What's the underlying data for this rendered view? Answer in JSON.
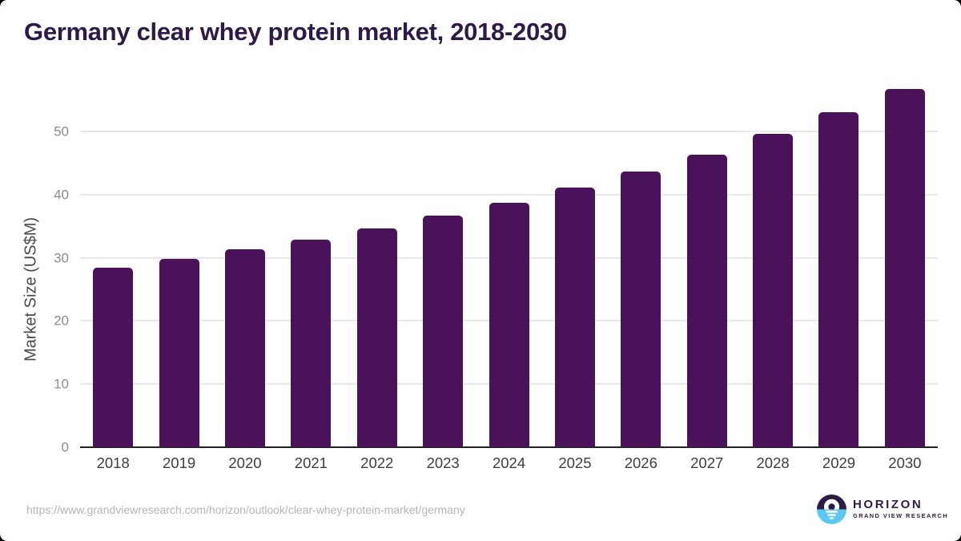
{
  "title": "Germany clear whey protein market, 2018-2030",
  "footer": {
    "source_url": "https://www.grandviewresearch.com/horizon/outlook/clear-whey-protein-market/germany",
    "logo": {
      "brand": "HORIZON",
      "subbrand": "GRAND VIEW RESEARCH"
    }
  },
  "colors": {
    "bar": "#4a1259",
    "title": "#2e1a47",
    "grid": "#e8e8e8",
    "axis_line": "#222222",
    "tick_label": "#8c8c8c",
    "x_label": "#3f3f3f",
    "axis_title": "#4a4a4a",
    "url": "#b5b5b5",
    "logo_purple": "#2e1c47",
    "logo_blue": "#5bc8f3"
  },
  "chart_data": {
    "type": "bar",
    "title": "Germany clear whey protein market, 2018-2030",
    "categories": [
      "2018",
      "2019",
      "2020",
      "2021",
      "2022",
      "2023",
      "2024",
      "2025",
      "2026",
      "2027",
      "2028",
      "2029",
      "2030"
    ],
    "values": [
      28.4,
      29.8,
      31.4,
      32.9,
      34.6,
      36.7,
      38.7,
      41.1,
      43.7,
      46.4,
      49.6,
      53.1,
      56.8
    ],
    "xlabel": "",
    "ylabel": "Market Size (US$M)",
    "yticks": [
      0,
      10,
      20,
      30,
      40,
      50
    ],
    "ylim": [
      0,
      58.4
    ],
    "grid": "horizontal-only",
    "legend": "none",
    "bar_color": "#4a1259"
  }
}
